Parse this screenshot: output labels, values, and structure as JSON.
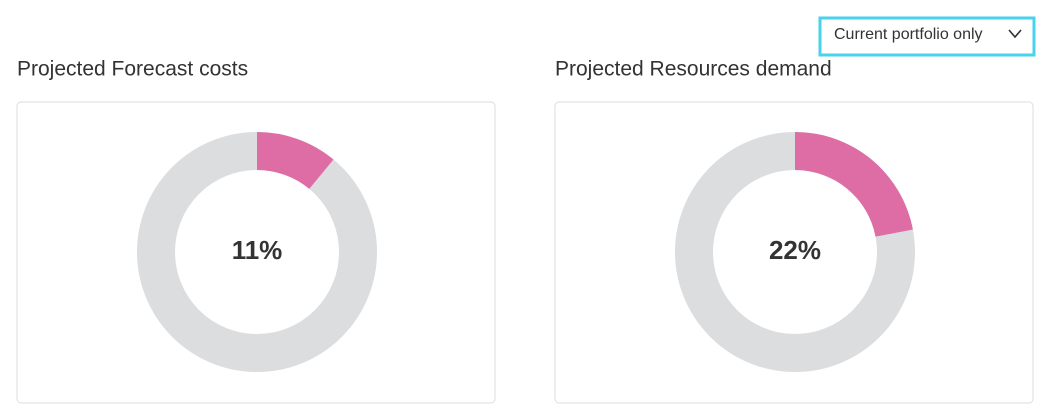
{
  "dropdown": {
    "label": "Current portfolio only"
  },
  "chart_data": [
    {
      "type": "donut",
      "title": "Projected Forecast costs",
      "value": 11,
      "value_label": "11%",
      "color": "#de6ca5",
      "track_color": "#dcdddf",
      "ylim": [
        0,
        100
      ]
    },
    {
      "type": "donut",
      "title": "Projected Resources demand",
      "value": 22,
      "value_label": "22%",
      "color": "#de6ca5",
      "track_color": "#dcdddf",
      "ylim": [
        0,
        100
      ]
    }
  ]
}
